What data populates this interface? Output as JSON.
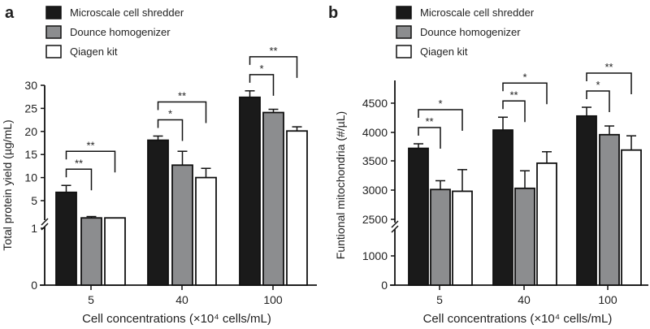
{
  "legend": [
    {
      "name": "Microscale cell shredder",
      "color": "#1a1a1a"
    },
    {
      "name": "Dounce homogenizer",
      "color": "#8c8d8f"
    },
    {
      "name": "Qiagen kit",
      "color": "#ffffff"
    }
  ],
  "chart_data": [
    {
      "type": "bar",
      "panel_label": "a",
      "xlabel": "Cell concentrations (×10⁴ cells/mL)",
      "ylabel": "Total protein yield (µg/mL)",
      "categories": [
        "5",
        "40",
        "100"
      ],
      "y_axis_break": true,
      "yticks": [
        0,
        1,
        5,
        10,
        15,
        20,
        25,
        30
      ],
      "series": [
        {
          "name": "Microscale cell shredder",
          "values": [
            6.8,
            18.1,
            27.4
          ],
          "error_upper": [
            8.3,
            19.0,
            28.8
          ]
        },
        {
          "name": "Dounce homogenizer",
          "values": [
            2.5,
            12.7,
            24.1
          ],
          "error_upper": [
            2.7,
            15.7,
            24.8
          ]
        },
        {
          "name": "Qiagen kit",
          "values": [
            2.5,
            10.0,
            20.1
          ],
          "error_upper": [
            2.5,
            12.0,
            21.0
          ]
        }
      ],
      "significance": [
        {
          "category": "5",
          "pairs": [
            {
              "compare": "Dounce homogenizer",
              "label": "**"
            },
            {
              "compare": "Qiagen kit",
              "label": "**"
            }
          ]
        },
        {
          "category": "40",
          "pairs": [
            {
              "compare": "Dounce homogenizer",
              "label": "*"
            },
            {
              "compare": "Qiagen kit",
              "label": "**"
            }
          ]
        },
        {
          "category": "100",
          "pairs": [
            {
              "compare": "Dounce homogenizer",
              "label": "*"
            },
            {
              "compare": "Qiagen kit",
              "label": "**"
            }
          ]
        }
      ]
    },
    {
      "type": "bar",
      "panel_label": "b",
      "xlabel": "Cell concentrations (×10⁴ cells/mL)",
      "ylabel": "Funtional mitochondria (#/µL)",
      "categories": [
        "5",
        "40",
        "100"
      ],
      "y_axis_break": true,
      "yticks": [
        0,
        1000,
        2500,
        3000,
        3500,
        4000,
        4500
      ],
      "series": [
        {
          "name": "Microscale cell shredder",
          "values": [
            3720,
            4040,
            4280
          ],
          "error_upper": [
            3800,
            4260,
            4430
          ]
        },
        {
          "name": "Dounce homogenizer",
          "values": [
            3010,
            3030,
            3960
          ],
          "error_upper": [
            3160,
            3330,
            4110
          ]
        },
        {
          "name": "Qiagen kit",
          "values": [
            2980,
            3460,
            3690
          ],
          "error_upper": [
            3350,
            3660,
            3940
          ]
        }
      ],
      "significance": [
        {
          "category": "5",
          "pairs": [
            {
              "compare": "Dounce homogenizer",
              "label": "**"
            },
            {
              "compare": "Qiagen kit",
              "label": "*"
            }
          ]
        },
        {
          "category": "40",
          "pairs": [
            {
              "compare": "Dounce homogenizer",
              "label": "**"
            },
            {
              "compare": "Qiagen kit",
              "label": "*"
            }
          ]
        },
        {
          "category": "100",
          "pairs": [
            {
              "compare": "Dounce homogenizer",
              "label": "*"
            },
            {
              "compare": "Qiagen kit",
              "label": "**"
            }
          ]
        }
      ]
    }
  ]
}
